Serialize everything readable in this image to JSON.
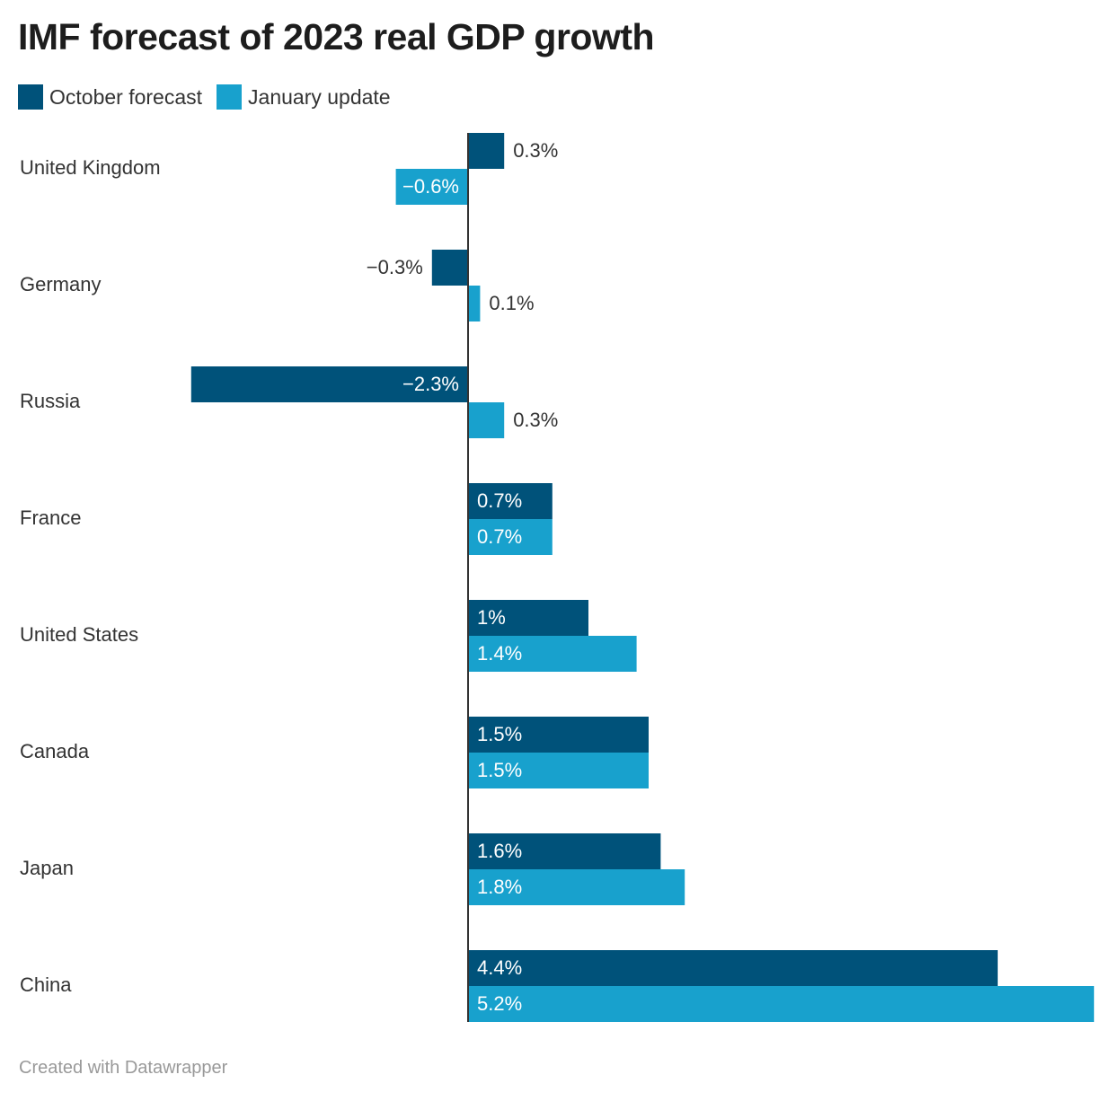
{
  "footer": {
    "credit": "Created with Datawrapper"
  },
  "colors": {
    "october": "#00527a",
    "january": "#18a1cd",
    "axis": "#333333",
    "text": "#333333",
    "label_inside": "#ffffff"
  },
  "chart_data": {
    "type": "bar",
    "orientation": "horizontal",
    "title": "IMF forecast of 2023 real GDP growth",
    "legend_position": "top-left",
    "categories": [
      "United Kingdom",
      "Germany",
      "Russia",
      "France",
      "United States",
      "Canada",
      "Japan",
      "China"
    ],
    "series": [
      {
        "name": "October forecast",
        "values": [
          0.3,
          -0.3,
          -2.3,
          0.7,
          1,
          1.5,
          1.6,
          4.4
        ],
        "labels": [
          "0.3%",
          "−0.3%",
          "−2.3%",
          "0.7%",
          "1%",
          "1.5%",
          "1.6%",
          "4.4%"
        ]
      },
      {
        "name": "January update",
        "values": [
          -0.6,
          0.1,
          0.3,
          0.7,
          1.4,
          1.5,
          1.8,
          5.2
        ],
        "labels": [
          "−0.6%",
          "0.1%",
          "0.3%",
          "0.7%",
          "1.4%",
          "1.5%",
          "1.8%",
          "5.2%"
        ]
      }
    ],
    "xlim": [
      -2.3,
      5.2
    ],
    "xlabel": "",
    "ylabel": "",
    "grid": false
  }
}
